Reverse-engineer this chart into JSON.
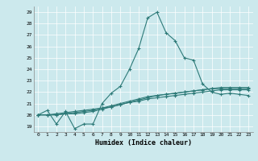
{
  "xlabel": "Humidex (Indice chaleur)",
  "ylabel": "",
  "background_color": "#cce9ed",
  "line_color": "#2d7a78",
  "xlim": [
    -0.5,
    23.5
  ],
  "ylim": [
    18.5,
    29.5
  ],
  "xticks": [
    0,
    1,
    2,
    3,
    4,
    5,
    6,
    7,
    8,
    9,
    10,
    11,
    12,
    13,
    14,
    15,
    16,
    17,
    18,
    19,
    20,
    21,
    22,
    23
  ],
  "yticks": [
    19,
    20,
    21,
    22,
    23,
    24,
    25,
    26,
    27,
    28,
    29
  ],
  "series": [
    [
      20.0,
      20.4,
      19.2,
      20.3,
      18.8,
      19.2,
      19.2,
      21.0,
      21.9,
      22.5,
      24.0,
      25.8,
      28.5,
      29.0,
      27.2,
      26.5,
      25.0,
      24.8,
      22.7,
      22.0,
      21.8,
      21.9,
      21.8,
      21.7
    ],
    [
      20.0,
      20.0,
      20.0,
      20.1,
      20.1,
      20.2,
      20.3,
      20.5,
      20.7,
      20.9,
      21.1,
      21.3,
      21.5,
      21.7,
      21.8,
      21.9,
      22.0,
      22.1,
      22.2,
      22.3,
      22.3,
      22.3,
      22.3,
      22.3
    ],
    [
      20.0,
      20.0,
      20.1,
      20.2,
      20.3,
      20.4,
      20.5,
      20.6,
      20.7,
      20.9,
      21.1,
      21.2,
      21.4,
      21.5,
      21.6,
      21.7,
      21.8,
      21.9,
      22.0,
      22.1,
      22.2,
      22.2,
      22.2,
      22.2
    ],
    [
      20.0,
      20.0,
      20.0,
      20.1,
      20.2,
      20.3,
      20.4,
      20.6,
      20.8,
      21.0,
      21.2,
      21.4,
      21.6,
      21.7,
      21.8,
      21.9,
      22.0,
      22.1,
      22.2,
      22.3,
      22.4,
      22.4,
      22.4,
      22.4
    ]
  ]
}
